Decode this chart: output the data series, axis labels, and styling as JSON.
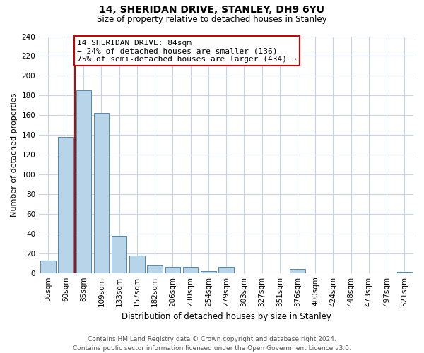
{
  "title": "14, SHERIDAN DRIVE, STANLEY, DH9 6YU",
  "subtitle": "Size of property relative to detached houses in Stanley",
  "xlabel": "Distribution of detached houses by size in Stanley",
  "ylabel": "Number of detached properties",
  "categories": [
    "36sqm",
    "60sqm",
    "85sqm",
    "109sqm",
    "133sqm",
    "157sqm",
    "182sqm",
    "206sqm",
    "230sqm",
    "254sqm",
    "279sqm",
    "303sqm",
    "327sqm",
    "351sqm",
    "376sqm",
    "400sqm",
    "424sqm",
    "448sqm",
    "473sqm",
    "497sqm",
    "521sqm"
  ],
  "values": [
    13,
    138,
    185,
    162,
    38,
    18,
    8,
    6,
    6,
    2,
    6,
    0,
    0,
    0,
    4,
    0,
    0,
    0,
    0,
    0,
    1
  ],
  "bar_color": "#b8d4e8",
  "bar_edge_color": "#5588aa",
  "vline_color": "#cc0000",
  "vline_x_index": 2,
  "annotation_title": "14 SHERIDAN DRIVE: 84sqm",
  "annotation_line1": "← 24% of detached houses are smaller (136)",
  "annotation_line2": "75% of semi-detached houses are larger (434) →",
  "annotation_box_color": "#cc0000",
  "ylim": [
    0,
    240
  ],
  "yticks": [
    0,
    20,
    40,
    60,
    80,
    100,
    120,
    140,
    160,
    180,
    200,
    220,
    240
  ],
  "footer_line1": "Contains HM Land Registry data © Crown copyright and database right 2024.",
  "footer_line2": "Contains public sector information licensed under the Open Government Licence v3.0.",
  "background_color": "#ffffff",
  "grid_color": "#c8d4e4",
  "title_fontsize": 10,
  "subtitle_fontsize": 8.5,
  "xlabel_fontsize": 8.5,
  "ylabel_fontsize": 8,
  "tick_fontsize": 7.5,
  "annotation_fontsize": 8,
  "footer_fontsize": 6.5
}
